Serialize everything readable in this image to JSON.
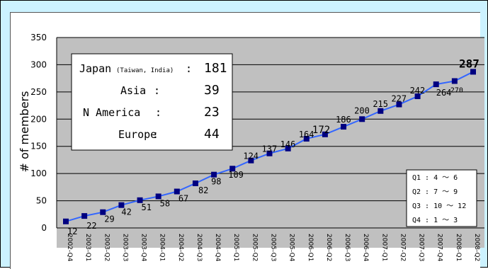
{
  "chart_data": {
    "type": "line",
    "title": "",
    "ylabel": "# of members",
    "xlabel": "",
    "ylim": [
      0,
      350
    ],
    "yticks": [
      "0",
      "50",
      "100",
      "150",
      "200",
      "250",
      "300",
      "350"
    ],
    "categories": [
      "2002-Q4",
      "2003-Q1",
      "2003-Q2",
      "2003-Q3",
      "2003-Q4",
      "2004-Q1",
      "2004-Q2",
      "2004-Q3",
      "2004-Q4",
      "2005-Q1",
      "2005-Q2",
      "2005-Q3",
      "2005-Q4",
      "2006-Q1",
      "2006-Q2",
      "2006-Q3",
      "2006-Q4",
      "2007-Q1",
      "2007-Q2",
      "2007-Q3",
      "2007-Q4",
      "2008-Q1",
      "2008-Q2"
    ],
    "series": [
      {
        "values": [
          12,
          22,
          29,
          42,
          51,
          58,
          67,
          82,
          98,
          109,
          124,
          137,
          146,
          164,
          172,
          186,
          200,
          215,
          227,
          242,
          264,
          270,
          287
        ]
      }
    ],
    "grid": true,
    "colors": {
      "line": "#3366ff",
      "marker": "#000080",
      "plot_bg": "#c0c0c0",
      "frame_bg": "#ccf2ff"
    }
  },
  "regions_box": {
    "rows": [
      {
        "name": "Japan",
        "sub": "(Taiwan, India)",
        "colon": ":",
        "value": "181"
      },
      {
        "name": "Asia",
        "sub": "",
        "colon": ":",
        "value": "39"
      },
      {
        "name": "N America",
        "sub": "",
        "colon": ":",
        "value": "23"
      },
      {
        "name": "Europe",
        "sub": "",
        "colon": ":",
        "value": "44"
      }
    ]
  },
  "quarter_legend": {
    "lines": [
      "Q1 : 4 ～ 6",
      "Q2 : 7 ～ 9",
      "Q3 : 10 ～ 12",
      "Q4 : 1 ～ 3"
    ]
  }
}
